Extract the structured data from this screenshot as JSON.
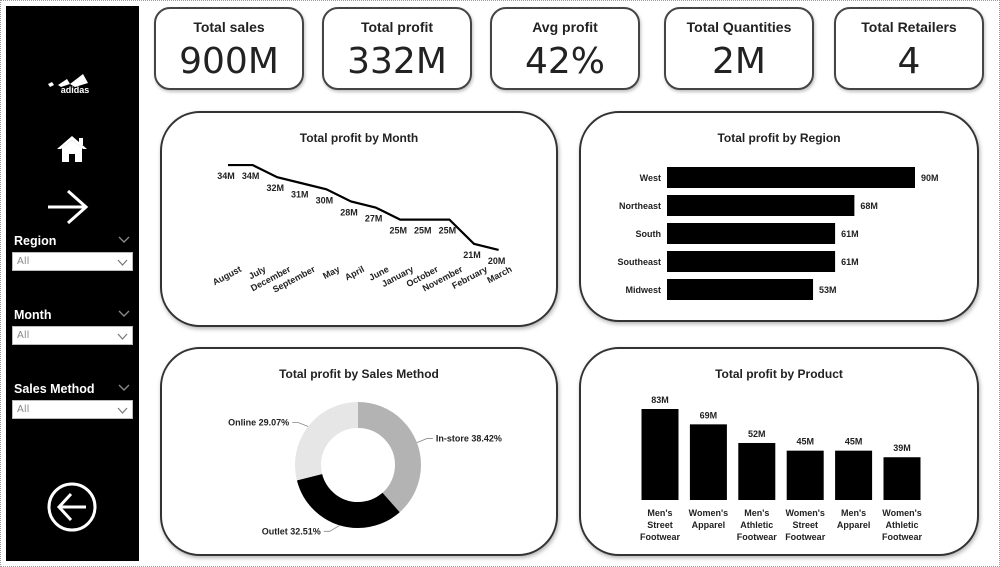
{
  "kpis": [
    {
      "label": "Total sales",
      "value": "900M"
    },
    {
      "label": "Total profit",
      "value": "332M"
    },
    {
      "label": "Avg profit",
      "value": "42%"
    },
    {
      "label": "Total Quantities",
      "value": "2M"
    },
    {
      "label": "Total Retailers",
      "value": "4"
    }
  ],
  "sidebar": {
    "logo_text": "adidas",
    "icons": [
      "home-icon",
      "arrow-right-icon",
      "back-arrow-icon"
    ],
    "filters": [
      {
        "label": "Region",
        "value": "All"
      },
      {
        "label": "Month",
        "value": "All"
      },
      {
        "label": "Sales Method",
        "value": "All"
      }
    ]
  },
  "colors": {
    "sidebar": "#000000",
    "bars": "#000000",
    "donut_instore": "#b3b3b3",
    "donut_outlet": "#000000",
    "donut_online": "#e6e6e6"
  },
  "chart_data": [
    {
      "type": "line",
      "title": "Total profit by Month",
      "categories": [
        "August",
        "July",
        "December",
        "September",
        "May",
        "April",
        "June",
        "January",
        "October",
        "November",
        "February",
        "March"
      ],
      "values": [
        34,
        34,
        32,
        31,
        30,
        28,
        27,
        25,
        25,
        25,
        21,
        20
      ],
      "labels": [
        "34M",
        "34M",
        "32M",
        "31M",
        "30M",
        "28M",
        "27M",
        "25M",
        "25M",
        "25M",
        "21M",
        "20M"
      ],
      "ylim": [
        19,
        35
      ]
    },
    {
      "type": "bar",
      "orientation": "horizontal",
      "title": "Total profit by Region",
      "categories": [
        "West",
        "Northeast",
        "South",
        "Southeast",
        "Midwest"
      ],
      "values": [
        90,
        68,
        61,
        61,
        53
      ],
      "labels": [
        "90M",
        "68M",
        "61M",
        "61M",
        "53M"
      ]
    },
    {
      "type": "pie",
      "title": "Total profit by Sales Method",
      "slices": [
        {
          "name": "In-store",
          "value": 38.42,
          "label": "In-store 38.42%"
        },
        {
          "name": "Outlet",
          "value": 32.51,
          "label": "Outlet 32.51%"
        },
        {
          "name": "Online",
          "value": 29.07,
          "label": "Online 29.07%"
        }
      ]
    },
    {
      "type": "bar",
      "title": "Total profit by Product",
      "categories": [
        [
          "Men's",
          "Street",
          "Footwear"
        ],
        [
          "Women's",
          "Apparel"
        ],
        [
          "Men's",
          "Athletic",
          "Footwear"
        ],
        [
          "Women's",
          "Street",
          "Footwear"
        ],
        [
          "Men's",
          "Apparel"
        ],
        [
          "Women's",
          "Athletic",
          "Footwear"
        ]
      ],
      "values": [
        83,
        69,
        52,
        45,
        45,
        39
      ],
      "labels": [
        "83M",
        "69M",
        "52M",
        "45M",
        "45M",
        "39M"
      ]
    }
  ]
}
